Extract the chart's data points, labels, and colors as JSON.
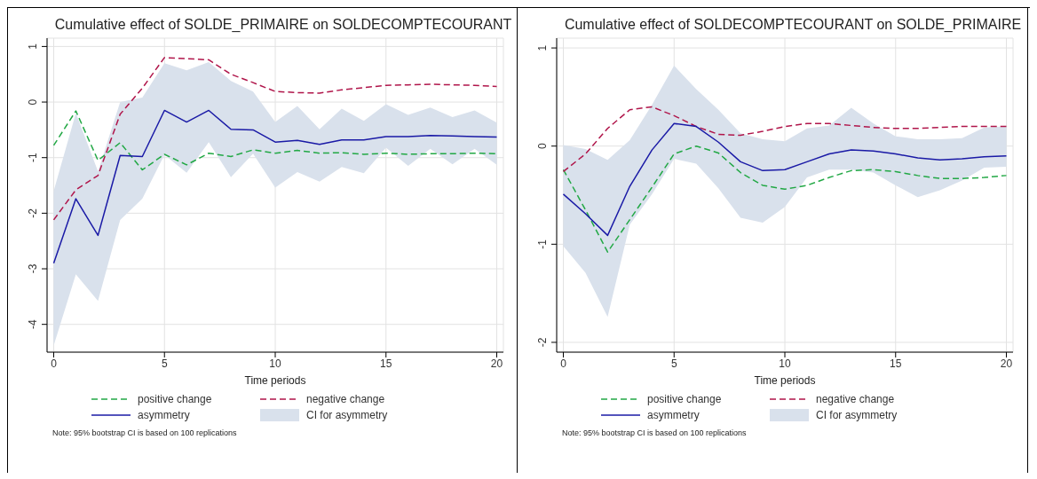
{
  "chart_data": [
    {
      "type": "line",
      "title": "Cumulative effect of SOLDE_PRIMAIRE on SOLDECOMPTECOURANT",
      "xlabel": "Time periods",
      "x": [
        0,
        1,
        2,
        3,
        4,
        5,
        6,
        7,
        8,
        9,
        10,
        11,
        12,
        13,
        14,
        15,
        16,
        17,
        18,
        19,
        20
      ],
      "xlim": [
        -0.3,
        20.3
      ],
      "xticks": [
        0,
        5,
        10,
        15,
        20
      ],
      "ylim": [
        -4.5,
        1.15
      ],
      "yticks": [
        -4,
        -3,
        -2,
        -1,
        0,
        1
      ],
      "grid": true,
      "legend": "bottom",
      "marker": "none",
      "annotations": [
        "CI for asymmetry",
        "Note: 95% bootstrap CI is based on 100 replications"
      ],
      "series": [
        {
          "name": "positive change",
          "color": "#22a845",
          "line_style": "dashed",
          "values": [
            -0.78,
            -0.16,
            -1.05,
            -0.73,
            -1.22,
            -0.94,
            -1.13,
            -0.92,
            -0.98,
            -0.86,
            -0.92,
            -0.87,
            -0.92,
            -0.91,
            -0.94,
            -0.92,
            -0.94,
            -0.93,
            -0.93,
            -0.92,
            -0.93
          ]
        },
        {
          "name": "negative change",
          "color": "#b0154a",
          "line_style": "dashed",
          "values": [
            -2.12,
            -1.58,
            -1.32,
            -0.22,
            0.25,
            0.8,
            0.78,
            0.76,
            0.5,
            0.35,
            0.19,
            0.17,
            0.16,
            0.22,
            0.26,
            0.3,
            0.31,
            0.32,
            0.31,
            0.3,
            0.28
          ]
        },
        {
          "name": "asymmetry",
          "color": "#1a1aa6",
          "line_style": "solid",
          "values": [
            -2.9,
            -1.74,
            -2.4,
            -0.96,
            -0.98,
            -0.15,
            -0.36,
            -0.15,
            -0.49,
            -0.5,
            -0.72,
            -0.69,
            -0.76,
            -0.68,
            -0.68,
            -0.62,
            -0.62,
            -0.6,
            -0.61,
            -0.62,
            -0.63
          ],
          "lower": [
            -4.38,
            -3.1,
            -3.58,
            -2.12,
            -1.74,
            -0.95,
            -1.27,
            -0.72,
            -1.35,
            -0.93,
            -1.54,
            -1.26,
            -1.43,
            -1.17,
            -1.28,
            -0.82,
            -1.15,
            -0.84,
            -1.12,
            -0.84,
            -1.13
          ],
          "upper": [
            -1.6,
            -0.2,
            -1.25,
            0.0,
            0.08,
            0.7,
            0.57,
            0.72,
            0.38,
            0.19,
            -0.36,
            -0.07,
            -0.49,
            -0.12,
            -0.34,
            -0.04,
            -0.23,
            -0.1,
            -0.27,
            -0.15,
            -0.37
          ]
        }
      ]
    },
    {
      "type": "line",
      "title": "Cumulative effect of SOLDECOMPTECOURANT on SOLDE_PRIMAIRE",
      "xlabel": "Time periods",
      "x": [
        0,
        1,
        2,
        3,
        4,
        5,
        6,
        7,
        8,
        9,
        10,
        11,
        12,
        13,
        14,
        15,
        16,
        17,
        18,
        19,
        20
      ],
      "xlim": [
        -0.3,
        20.3
      ],
      "xticks": [
        0,
        5,
        10,
        15,
        20
      ],
      "ylim": [
        -2.1,
        1.1
      ],
      "yticks": [
        -2,
        -1,
        0,
        1
      ],
      "grid": true,
      "legend": "bottom",
      "marker": "none",
      "annotations": [
        "CI for asymmetry",
        "Note: 95% bootstrap CI is based on 100 replications"
      ],
      "series": [
        {
          "name": "positive change",
          "color": "#22a845",
          "line_style": "dashed",
          "values": [
            -0.24,
            -0.65,
            -1.08,
            -0.75,
            -0.42,
            -0.08,
            0.0,
            -0.07,
            -0.27,
            -0.4,
            -0.44,
            -0.4,
            -0.32,
            -0.25,
            -0.24,
            -0.26,
            -0.3,
            -0.33,
            -0.33,
            -0.32,
            -0.3
          ]
        },
        {
          "name": "negative change",
          "color": "#b0154a",
          "line_style": "dashed",
          "values": [
            -0.26,
            -0.08,
            0.18,
            0.37,
            0.4,
            0.31,
            0.2,
            0.12,
            0.11,
            0.15,
            0.2,
            0.23,
            0.23,
            0.21,
            0.19,
            0.18,
            0.18,
            0.19,
            0.2,
            0.2,
            0.2
          ]
        },
        {
          "name": "asymmetry",
          "color": "#1a1aa6",
          "line_style": "solid",
          "values": [
            -0.49,
            -0.69,
            -0.91,
            -0.41,
            -0.04,
            0.23,
            0.2,
            0.04,
            -0.16,
            -0.25,
            -0.24,
            -0.16,
            -0.08,
            -0.04,
            -0.05,
            -0.08,
            -0.12,
            -0.14,
            -0.13,
            -0.11,
            -0.1
          ],
          "lower": [
            -1.02,
            -1.29,
            -1.74,
            -0.8,
            -0.49,
            -0.13,
            -0.18,
            -0.43,
            -0.73,
            -0.78,
            -0.62,
            -0.32,
            -0.24,
            -0.24,
            -0.27,
            -0.4,
            -0.52,
            -0.45,
            -0.35,
            -0.22,
            -0.21
          ],
          "upper": [
            0.01,
            -0.03,
            -0.14,
            0.06,
            0.42,
            0.82,
            0.58,
            0.37,
            0.13,
            0.07,
            0.05,
            0.18,
            0.21,
            0.39,
            0.23,
            0.1,
            0.07,
            0.07,
            0.08,
            0.19,
            0.2
          ]
        }
      ]
    }
  ]
}
